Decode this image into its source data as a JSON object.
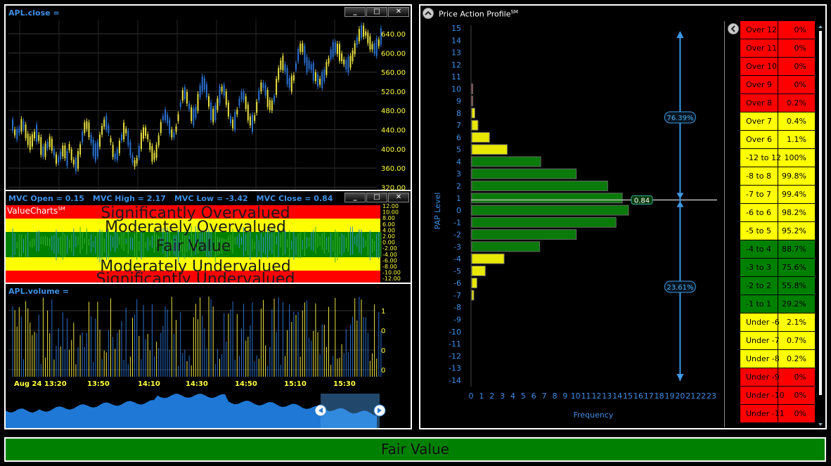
{
  "price_chart": {
    "title": "APL.close =",
    "y_ticks": [
      "640.00",
      "600.00",
      "560.00",
      "520.00",
      "480.00",
      "440.00",
      "400.00",
      "360.00",
      "320.00"
    ]
  },
  "mvc_chart": {
    "readouts": [
      "MVC Open = 0.15",
      "MVC High = 2.17",
      "MVC Low = -3.42",
      "MVC Close = 0.84"
    ],
    "logo": "ValueCharts",
    "logo_sup": "SM",
    "zones": {
      "sig_over": "Significantly Overvalued",
      "mod_over": "Moderately Overvalued",
      "fair": "Fair Value",
      "mod_under": "Moderately Undervalued",
      "sig_under": "Significantly Undervalued"
    },
    "y_ticks": [
      "12.00",
      "10.00",
      "8.00",
      "6.00",
      "4.00",
      "2.00",
      "0.00",
      "-2.00",
      "-4.00",
      "-6.00",
      "-8.00",
      "-10.00",
      "-12.00"
    ]
  },
  "volume_chart": {
    "title": "APL.volume =",
    "y_ticks": [
      "1",
      "0",
      "0",
      "0"
    ],
    "x_ticks": [
      "Aug 24 13:20",
      "13:50",
      "14:10",
      "14:30",
      "14:50",
      "15:10",
      "15:30"
    ]
  },
  "window_buttons": {
    "minimize": "_",
    "restore": "□",
    "close": "✕"
  },
  "pap": {
    "title": "Price Action Profile",
    "title_sup": "SM",
    "y_label": "PAP Level",
    "x_label": "Frequency",
    "y_ticks": [
      "15",
      "14",
      "13",
      "12",
      "11",
      "10",
      "9",
      "8",
      "7",
      "6",
      "5",
      "4",
      "3",
      "2",
      "1",
      "0",
      "-1",
      "-2",
      "-3",
      "-4",
      "-5",
      "-6",
      "-7",
      "-8",
      "-9",
      "-10",
      "-11",
      "-12",
      "-13",
      "-14"
    ],
    "x_ticks": [
      "0",
      "1",
      "2",
      "3",
      "4",
      "5",
      "6",
      "7",
      "8",
      "9",
      "10",
      "11",
      "12",
      "13",
      "14",
      "15",
      "16",
      "17",
      "18",
      "19",
      "20",
      "21",
      "22",
      "23"
    ],
    "current_value": "0.84",
    "upper_pct": "76.39%",
    "lower_pct": "23.61%",
    "bars": [
      {
        "level": 10,
        "value": 0.1,
        "color": "#c02020"
      },
      {
        "level": 9,
        "value": 0.1,
        "color": "#c02020"
      },
      {
        "level": 8,
        "value": 0.3,
        "color": "#e8e800"
      },
      {
        "level": 7,
        "value": 0.6,
        "color": "#e8e800"
      },
      {
        "level": 6,
        "value": 1.7,
        "color": "#e8e800"
      },
      {
        "level": 5,
        "value": 3.4,
        "color": "#e8e800"
      },
      {
        "level": 4,
        "value": 6.6,
        "color": "#0a7a0a"
      },
      {
        "level": 3,
        "value": 10.0,
        "color": "#0a7a0a"
      },
      {
        "level": 2,
        "value": 13.0,
        "color": "#0a7a0a"
      },
      {
        "level": 1,
        "value": 14.4,
        "color": "#0a7a0a"
      },
      {
        "level": 0,
        "value": 15.0,
        "color": "#0a7a0a"
      },
      {
        "level": -1,
        "value": 13.8,
        "color": "#0a7a0a"
      },
      {
        "level": -2,
        "value": 10.0,
        "color": "#0a7a0a"
      },
      {
        "level": -3,
        "value": 6.5,
        "color": "#0a7a0a"
      },
      {
        "level": -4,
        "value": 3.1,
        "color": "#e8e800"
      },
      {
        "level": -5,
        "value": 1.3,
        "color": "#e8e800"
      },
      {
        "level": -6,
        "value": 0.5,
        "color": "#e8e800"
      },
      {
        "level": -7,
        "value": 0.2,
        "color": "#e8e800"
      }
    ]
  },
  "pap_table": [
    {
      "range": "Over 12",
      "pct": "0%",
      "color": "#ff0000"
    },
    {
      "range": "Over 11",
      "pct": "0%",
      "color": "#ff0000"
    },
    {
      "range": "Over 10",
      "pct": "0%",
      "color": "#ff0000"
    },
    {
      "range": "Over 9",
      "pct": "0%",
      "color": "#ff0000"
    },
    {
      "range": "Over 8",
      "pct": "0.2%",
      "color": "#ff0000"
    },
    {
      "range": "Over 7",
      "pct": "0.4%",
      "color": "#ffff00"
    },
    {
      "range": "Over 6",
      "pct": "1.1%",
      "color": "#ffff00"
    },
    {
      "range": "-12 to 12",
      "pct": "100%",
      "color": "#ffff00"
    },
    {
      "range": "-8 to 8",
      "pct": "99.8%",
      "color": "#ffff00"
    },
    {
      "range": "-7 to 7",
      "pct": "99.4%",
      "color": "#ffff00"
    },
    {
      "range": "-6 to 6",
      "pct": "98.2%",
      "color": "#ffff00"
    },
    {
      "range": "-5 to 5",
      "pct": "95.2%",
      "color": "#ffff00"
    },
    {
      "range": "-4 to 4",
      "pct": "88.7%",
      "color": "#008000"
    },
    {
      "range": "-3 to 3",
      "pct": "75.6%",
      "color": "#008000"
    },
    {
      "range": "-2 to 2",
      "pct": "55.8%",
      "color": "#008000"
    },
    {
      "range": "-1 to 1",
      "pct": "29.2%",
      "color": "#008000"
    },
    {
      "range": "Under -6",
      "pct": "2.1%",
      "color": "#ffff00"
    },
    {
      "range": "Under -7",
      "pct": "0.7%",
      "color": "#ffff00"
    },
    {
      "range": "Under -8",
      "pct": "0.2%",
      "color": "#ffff00"
    },
    {
      "range": "Under -9",
      "pct": "0%",
      "color": "#ff0000"
    },
    {
      "range": "Under -10",
      "pct": "0%",
      "color": "#ff0000"
    },
    {
      "range": "Under -11",
      "pct": "0%",
      "color": "#ff0000"
    }
  ],
  "status_bar": {
    "text": "Fair Value",
    "color": "#008000"
  }
}
